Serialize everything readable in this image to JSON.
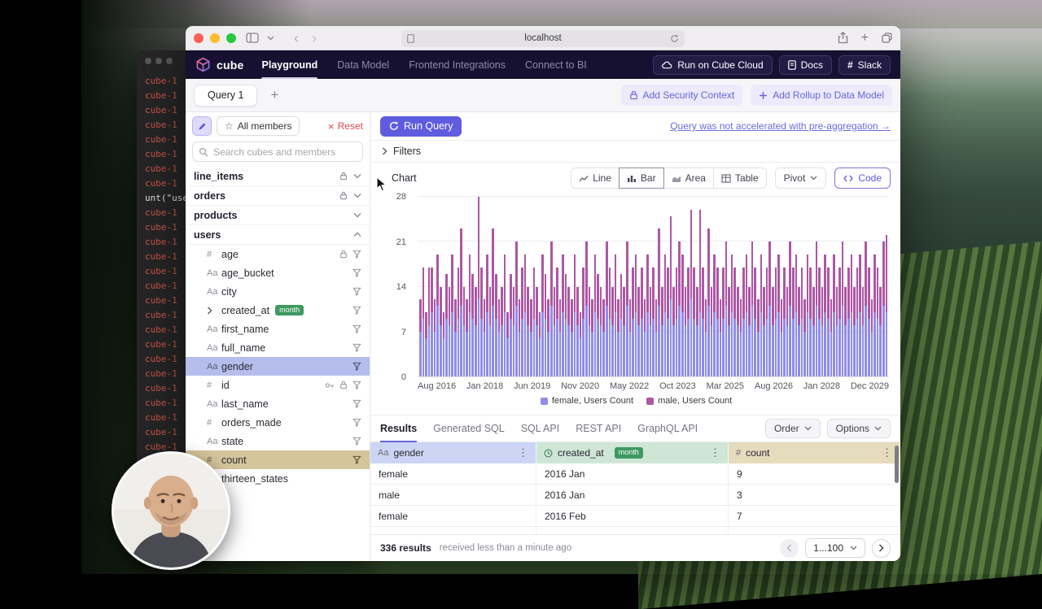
{
  "browser": {
    "url": "localhost"
  },
  "terminal": {
    "lines": [
      "cube-1",
      "cube-1",
      "cube-1",
      "cube-1",
      "cube-1",
      "cube-1",
      "cube-1",
      "cube-1",
      "unt(\"user",
      "cube-1",
      "cube-1",
      "cube-1",
      "cube-1",
      "cube-1",
      "cube-1",
      "cube-1",
      "cube-1",
      "cube-1",
      "cube-1",
      "cube-1",
      "cube-1",
      "cube-1",
      "cube-1",
      "cube-1",
      "cube-1",
      "cube-1",
      "cube-1",
      "cube-1",
      "cube-1",
      "cube-1",
      "cube-1"
    ]
  },
  "nav": {
    "brand": "cube",
    "items": [
      "Playground",
      "Data Model",
      "Frontend Integrations",
      "Connect to BI"
    ],
    "run_cloud": "Run on Cube Cloud",
    "docs": "Docs",
    "slack": "Slack"
  },
  "tabstrip": {
    "tab": "Query 1",
    "add_tab": "+",
    "add_security": "Add Security Context",
    "add_rollup": "Add Rollup to Data Model"
  },
  "query_controls": {
    "all_members": "All members",
    "reset": "Reset",
    "run": "Run Query",
    "preagg": "Query was not accelerated with pre-aggregation →",
    "search_placeholder": "Search cubes and members"
  },
  "tree": {
    "cubes": [
      {
        "label": "line_items"
      },
      {
        "label": "orders"
      },
      {
        "label": "products"
      },
      {
        "label": "users"
      }
    ],
    "members": [
      {
        "prefix": "#",
        "label": "age"
      },
      {
        "prefix": "Aa",
        "label": "age_bucket"
      },
      {
        "prefix": "Aa",
        "label": "city"
      },
      {
        "prefix": "",
        "label": "created_at",
        "badge": "month"
      },
      {
        "prefix": "Aa",
        "label": "first_name"
      },
      {
        "prefix": "Aa",
        "label": "full_name"
      },
      {
        "prefix": "Aa",
        "label": "gender"
      },
      {
        "prefix": "#",
        "label": "id"
      },
      {
        "prefix": "Aa",
        "label": "last_name"
      },
      {
        "prefix": "#",
        "label": "orders_made"
      },
      {
        "prefix": "Aa",
        "label": "state"
      },
      {
        "prefix": "#",
        "label": "count"
      },
      {
        "prefix": "",
        "label": "thirteen_states"
      }
    ]
  },
  "sections": {
    "filters": "Filters",
    "chart": "Chart",
    "chart_types": [
      "Line",
      "Bar",
      "Area",
      "Table"
    ],
    "active_chart_type": "Bar",
    "pivot": "Pivot",
    "code": "Code"
  },
  "chart_data": {
    "type": "bar",
    "stacked": true,
    "x_unit": "month",
    "x_range": [
      "2016-08",
      "2029-12"
    ],
    "x_tick_labels": [
      "Aug 2016",
      "Jan 2018",
      "Jun 2019",
      "Nov 2020",
      "May 2022",
      "Oct 2023",
      "Mar 2025",
      "Aug 2026",
      "Jan 2028",
      "Dec 2029"
    ],
    "y_ticks": [
      0,
      7,
      14,
      21,
      28
    ],
    "ylim": [
      0,
      28
    ],
    "grid": "horizontal",
    "legend_position": "bottom",
    "series": [
      {
        "name": "female, Users Count",
        "color": "#908de8",
        "values": [
          7,
          9,
          6,
          8,
          10,
          7,
          11,
          8,
          6,
          9,
          8,
          10,
          7,
          9,
          11,
          8,
          7,
          10,
          9,
          8,
          12,
          9,
          7,
          10,
          8,
          11,
          9,
          7,
          8,
          10,
          6,
          9,
          8,
          11,
          7,
          9,
          10,
          8,
          7,
          9,
          8,
          6,
          10,
          9,
          7,
          11,
          8,
          9,
          7,
          10,
          9,
          8,
          7,
          10,
          8,
          6,
          9,
          11,
          8,
          7,
          10,
          9,
          8,
          7,
          11,
          9,
          8,
          10,
          7,
          9,
          8,
          11,
          7,
          9,
          10,
          8,
          9,
          7,
          10,
          8,
          9,
          7,
          11,
          8,
          10,
          9,
          12,
          8,
          9,
          11,
          10,
          8,
          9,
          12,
          9,
          8,
          10,
          9,
          7,
          11,
          8,
          10,
          9,
          7,
          9,
          11,
          8,
          10,
          9,
          8,
          7,
          9,
          10,
          8,
          11,
          9,
          7,
          10,
          8,
          9,
          11,
          8,
          9,
          10,
          7,
          9,
          8,
          11,
          9,
          10,
          8,
          9,
          7,
          10,
          9,
          8,
          11,
          9,
          8,
          10,
          9,
          7,
          10,
          8,
          9,
          11,
          8,
          9,
          10,
          8,
          9,
          10,
          8,
          11,
          9,
          7,
          10,
          9,
          8,
          11,
          10
        ]
      },
      {
        "name": "male, Users Count",
        "color": "#ad57a4",
        "values": [
          5,
          8,
          4,
          9,
          7,
          5,
          8,
          6,
          4,
          7,
          6,
          9,
          5,
          8,
          12,
          6,
          5,
          9,
          7,
          6,
          16,
          8,
          5,
          9,
          6,
          12,
          7,
          5,
          6,
          9,
          4,
          7,
          6,
          10,
          5,
          8,
          9,
          6,
          5,
          8,
          6,
          4,
          9,
          7,
          5,
          10,
          6,
          8,
          5,
          9,
          7,
          6,
          5,
          9,
          6,
          4,
          8,
          10,
          6,
          5,
          9,
          7,
          6,
          5,
          10,
          8,
          6,
          9,
          5,
          7,
          6,
          10,
          5,
          8,
          9,
          6,
          8,
          5,
          9,
          6,
          8,
          5,
          12,
          6,
          9,
          8,
          13,
          6,
          8,
          10,
          9,
          6,
          8,
          14,
          8,
          6,
          16,
          8,
          5,
          12,
          6,
          9,
          8,
          5,
          8,
          10,
          6,
          9,
          8,
          6,
          5,
          8,
          9,
          6,
          10,
          8,
          5,
          9,
          6,
          8,
          10,
          6,
          8,
          9,
          5,
          8,
          6,
          10,
          8,
          9,
          6,
          8,
          5,
          9,
          8,
          6,
          10,
          8,
          6,
          9,
          8,
          5,
          9,
          6,
          8,
          10,
          6,
          8,
          9,
          6,
          8,
          9,
          6,
          10,
          8,
          5,
          9,
          8,
          6,
          10,
          12
        ]
      }
    ]
  },
  "results": {
    "tabs": [
      "Results",
      "Generated SQL",
      "SQL API",
      "REST API",
      "GraphQL API"
    ],
    "active_tab": "Results",
    "order": "Order",
    "options": "Options",
    "table": {
      "columns": [
        {
          "prefix": "Aa",
          "label": "gender"
        },
        {
          "prefix": "clock",
          "label": "created_at",
          "badge": "month"
        },
        {
          "prefix": "#",
          "label": "count"
        }
      ],
      "rows": [
        [
          "female",
          "2016 Jan",
          "9"
        ],
        [
          "male",
          "2016 Jan",
          "3"
        ],
        [
          "female",
          "2016 Feb",
          "7"
        ]
      ]
    },
    "footer": {
      "count": "336 results",
      "ago": "received less than a minute ago",
      "pagination": "1...100"
    }
  }
}
